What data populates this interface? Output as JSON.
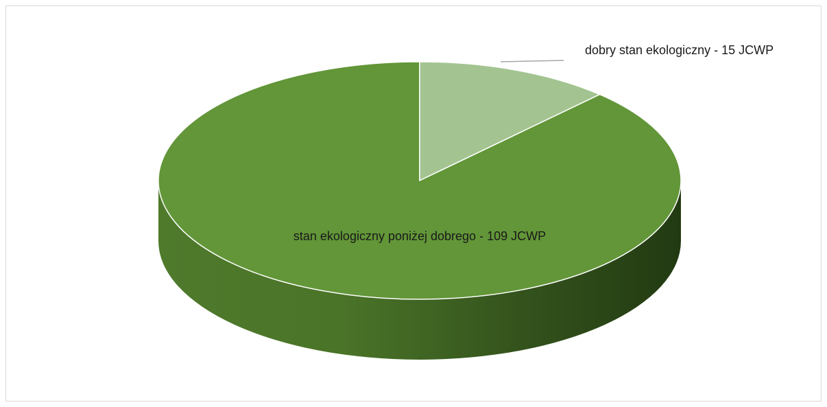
{
  "chart_data": {
    "type": "pie",
    "style": "3d",
    "slices": [
      {
        "label": "stan ekologiczny poniżej dobrego - 109 JCWP",
        "name": "stan ekologiczny poniżej dobrego",
        "value": 109,
        "color": "#629638"
      },
      {
        "label": "dobry stan ekologiczny - 15 JCWP",
        "name": "dobry stan ekologiczny",
        "value": 15,
        "color": "#a3c490"
      }
    ],
    "title": "",
    "legend": "none"
  }
}
